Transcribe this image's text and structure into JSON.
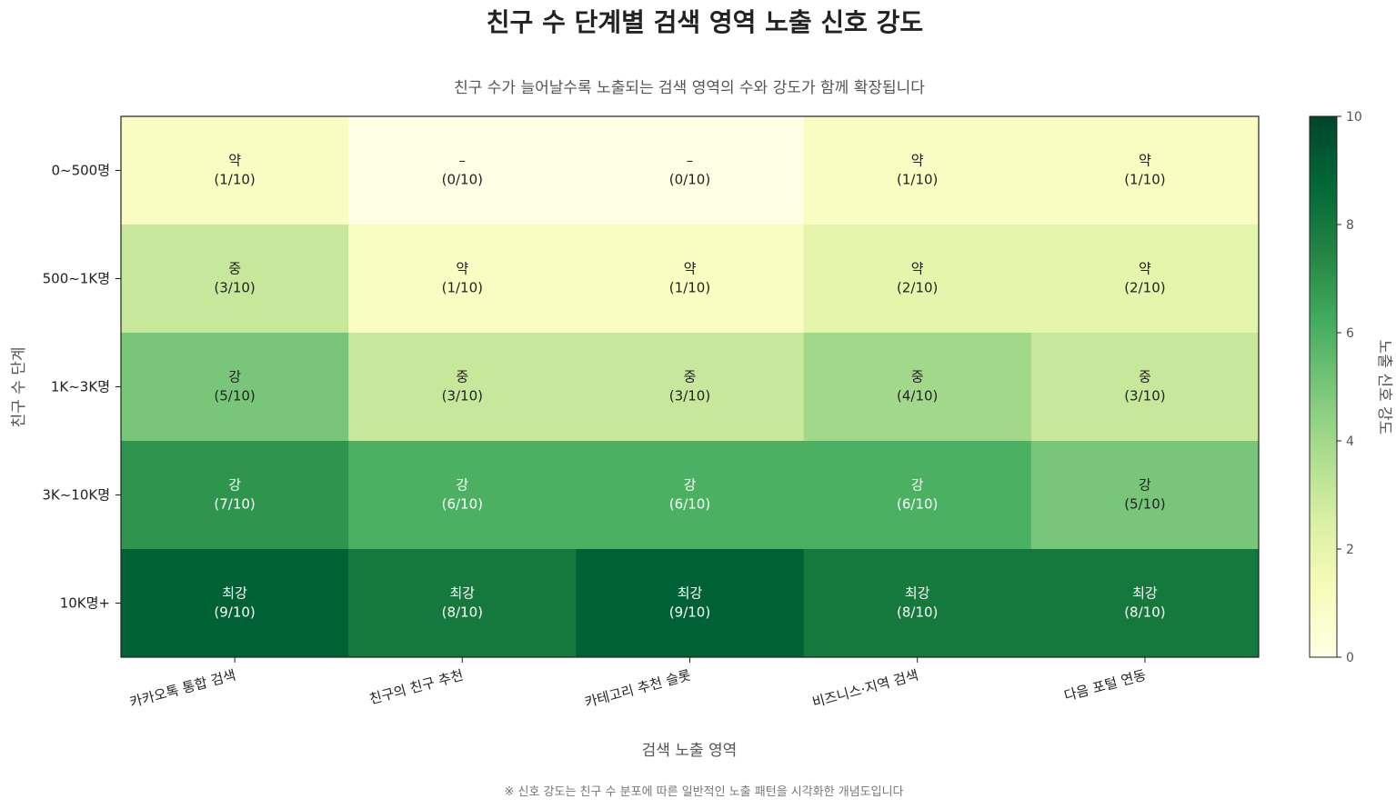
{
  "chart_data": {
    "type": "heatmap",
    "title": "친구 수 단계별 검색 영역 노출 신호 강도",
    "subtitle": "친구 수가 늘어날수록 노출되는 검색 영역의 수와 강도가 함께 확장됩니다",
    "xlabel": "검색 노출 영역",
    "ylabel": "친구 수 단계",
    "colorbar_label": "노출 신호 강도",
    "footnote": "※ 신호 강도는 친구 수 분포에 따른 일반적인 노출 패턴을 시각화한 개념도입니다",
    "x_categories": [
      "카카오톡 통합 검색",
      "친구의 친구 추천",
      "카테고리 추천 슬롯",
      "비즈니스·지역 검색",
      "다음 포털 연동"
    ],
    "y_categories": [
      "0~500명",
      "500~1K명",
      "1K~3K명",
      "3K~10K명",
      "10K명+"
    ],
    "values": [
      [
        1,
        0,
        0,
        1,
        1
      ],
      [
        3,
        1,
        1,
        2,
        2
      ],
      [
        5,
        3,
        3,
        4,
        3
      ],
      [
        7,
        6,
        6,
        6,
        5
      ],
      [
        9,
        8,
        9,
        8,
        8
      ]
    ],
    "cell_labels": [
      [
        "약",
        "–",
        "–",
        "약",
        "약"
      ],
      [
        "중",
        "약",
        "약",
        "약",
        "약"
      ],
      [
        "강",
        "중",
        "중",
        "중",
        "중"
      ],
      [
        "강",
        "강",
        "강",
        "강",
        "강"
      ],
      [
        "최강",
        "최강",
        "최강",
        "최강",
        "최강"
      ]
    ],
    "value_labels": [
      [
        "(1/10)",
        "(0/10)",
        "(0/10)",
        "(1/10)",
        "(1/10)"
      ],
      [
        "(3/10)",
        "(1/10)",
        "(1/10)",
        "(2/10)",
        "(2/10)"
      ],
      [
        "(5/10)",
        "(3/10)",
        "(3/10)",
        "(4/10)",
        "(3/10)"
      ],
      [
        "(7/10)",
        "(6/10)",
        "(6/10)",
        "(6/10)",
        "(5/10)"
      ],
      [
        "(9/10)",
        "(8/10)",
        "(9/10)",
        "(8/10)",
        "(8/10)"
      ]
    ],
    "color_range": [
      0,
      10
    ],
    "colorbar_ticks": [
      "0",
      "2",
      "4",
      "6",
      "8",
      "10"
    ],
    "colormap": "YlGn",
    "grid": false,
    "legend": "colorbar-right"
  }
}
